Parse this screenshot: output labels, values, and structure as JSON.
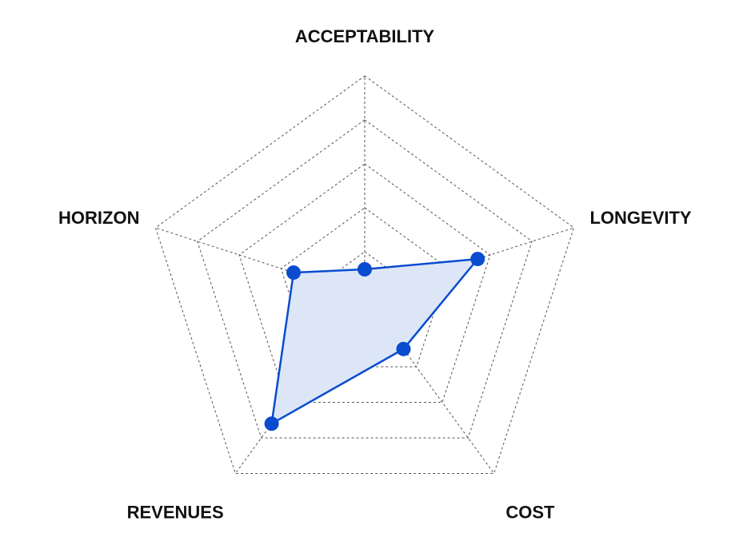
{
  "chart_data": {
    "type": "radar",
    "title": "",
    "axes": [
      "ACCEPTABILITY",
      "LONGEVITY",
      "COST",
      "REVENUES",
      "HORIZON"
    ],
    "rlim": [
      0,
      5
    ],
    "grid_levels": 5,
    "grid": true,
    "series": [
      {
        "values": [
          0.6,
          2.7,
          1.5,
          3.6,
          1.7
        ],
        "color": "#0a4ccf",
        "fill": "#dde6f7"
      }
    ]
  }
}
